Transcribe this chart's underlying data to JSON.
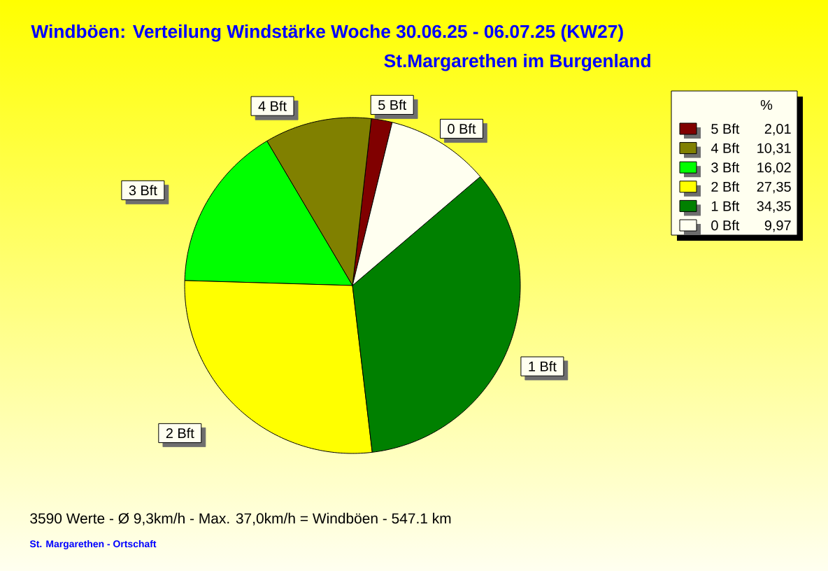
{
  "chart_data": {
    "type": "pie",
    "title": "Windböen: Verteilung Windstärke  Woche 30.06.25 - 06.07.25 (KW27)",
    "subtitle": "St.Margarethen im Burgenland",
    "categories": [
      "5 Bft",
      "4 Bft",
      "3 Bft",
      "2 Bft",
      "1 Bft",
      "0 Bft"
    ],
    "values": [
      2.01,
      10.31,
      16.02,
      27.35,
      34.35,
      9.97
    ],
    "value_labels": [
      "2,01",
      "10,31",
      "16,02",
      "27,35",
      "34,35",
      "9,97"
    ],
    "colors": [
      "#800000",
      "#808000",
      "#00ff00",
      "#ffff00",
      "#008000",
      "#fffff0"
    ],
    "legend": "top right",
    "legend_title": "%",
    "annotations": [
      "3590 Werte  -  Ø 9,3km/h  -  Max. 37,0km/h = Windböen  -  547.1 km",
      "St. Margarethen - Ortschaft"
    ]
  }
}
